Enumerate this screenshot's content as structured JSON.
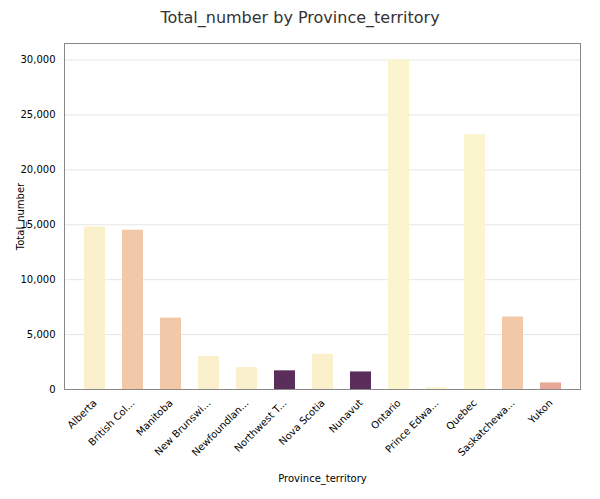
{
  "chart_data": {
    "type": "bar",
    "title": "Total_number by Province_territory",
    "xlabel": "Province_territory",
    "ylabel": "Total_number",
    "categories": [
      "Alberta",
      "British Col...",
      "Manitoba",
      "New Brunswi...",
      "Newfoundlan...",
      "Northwest T...",
      "Nova Scotia",
      "Nunavut",
      "Ontario",
      "Prince Edwa...",
      "Quebec",
      "Saskatchewa...",
      "Yukon"
    ],
    "values": [
      14800,
      14500,
      6500,
      3000,
      2000,
      1700,
      3200,
      1600,
      30000,
      150,
      23200,
      6600,
      600
    ],
    "colors": [
      "#faf0cc",
      "#f2c9a8",
      "#f2c9a8",
      "#faf0cc",
      "#faf0cc",
      "#5a2d5a",
      "#faf0cc",
      "#5a2d5a",
      "#faf5cc",
      "#faf5cc",
      "#faf5cc",
      "#f2c9a8",
      "#e8a898"
    ],
    "ylim": [
      0,
      31500
    ],
    "yticks": [
      0,
      {
        "value": 5000,
        "label": "5,000"
      },
      {
        "value": 10000,
        "label": "10,000"
      },
      {
        "value": 15000,
        "label": "15,000"
      },
      {
        "value": 20000,
        "label": "20,000"
      },
      {
        "value": 25000,
        "label": "25,000"
      },
      {
        "value": 30000,
        "label": "30,000"
      }
    ],
    "grid": true
  }
}
